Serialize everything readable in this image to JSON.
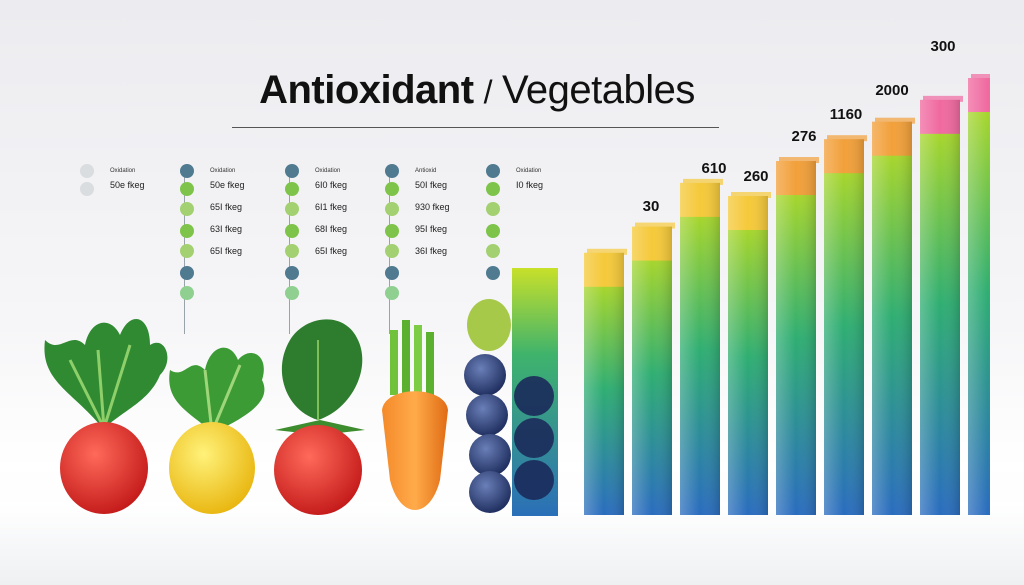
{
  "title": {
    "part_a": "Antioxidant",
    "separator": "/",
    "part_b": "Vegetables"
  },
  "legend": [
    {
      "heading": "Oxidation",
      "rows": [
        "50e fkeg"
      ]
    },
    {
      "heading": "Oxidation",
      "rows": [
        "50e fkeg",
        "65I fkeg",
        "63I fkeg",
        "65I fkeg"
      ]
    },
    {
      "heading": "Oxidation",
      "rows": [
        "6I0 fkeg",
        "6I1 fkeg",
        "68I fkeg",
        "65I fkeg"
      ]
    },
    {
      "heading": "Antioxid",
      "rows": [
        "50I fkeg",
        "930 fkeg",
        "95I fkeg",
        "36I fkeg"
      ]
    },
    {
      "heading": "Oxidation",
      "rows": [
        "I0 fkeg"
      ]
    }
  ],
  "chart_data": {
    "type": "bar",
    "title": "Antioxidant / Vegetables",
    "value_labels": [
      "30",
      "610",
      "260",
      "276",
      "1160",
      "2000",
      "300"
    ],
    "bars_relative_height": [
      0.6,
      0.66,
      0.76,
      0.73,
      0.81,
      0.86,
      0.9,
      0.95,
      1.0
    ],
    "colors": {
      "top": "#f5c93a",
      "top_alt": "#f2a03a",
      "pink": "#f06aa0",
      "mid": "#3fb36c",
      "bottom": "#2a6fb8"
    }
  },
  "produce": [
    "kale",
    "lemon-greens",
    "strawberry-spinach",
    "carrot",
    "blueberries"
  ]
}
